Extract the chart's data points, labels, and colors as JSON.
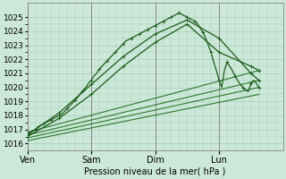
{
  "xlabel": "Pression niveau de la mer( hPa )",
  "ylim": [
    1015.5,
    1026.0
  ],
  "xlim": [
    0,
    96
  ],
  "yticks": [
    1016,
    1017,
    1018,
    1019,
    1020,
    1021,
    1022,
    1023,
    1024,
    1025
  ],
  "xtick_labels": [
    "Ven",
    "Sam",
    "Dim",
    "Lun"
  ],
  "xtick_positions": [
    0,
    24,
    48,
    72
  ],
  "vline_positions": [
    0,
    24,
    48,
    72
  ],
  "bg_color": "#cce8d8",
  "grid_color": "#aaccbb",
  "line_color_main": "#1a5c1a",
  "line_color_ensemble": "#2a7a2a",
  "main_series": [
    {
      "x": [
        0,
        1,
        2,
        3,
        4,
        5,
        6,
        7,
        8,
        9,
        10,
        11,
        12,
        13,
        14,
        15,
        16,
        17,
        18,
        19,
        20,
        21,
        22,
        23,
        24,
        25,
        26,
        27,
        28,
        29,
        30,
        31,
        32,
        33,
        34,
        35,
        36,
        37,
        38,
        39,
        40,
        41,
        42,
        43,
        44,
        45,
        46,
        47,
        48,
        49,
        50,
        51,
        52,
        53,
        54,
        55,
        56,
        57,
        58,
        59,
        60,
        61,
        62,
        63,
        64,
        65,
        66,
        67,
        68,
        69,
        70,
        71,
        72,
        73,
        74,
        75,
        76,
        77,
        78,
        79,
        80,
        81,
        82,
        83,
        84,
        85,
        86,
        87
      ],
      "y": [
        1016.7,
        1016.8,
        1016.9,
        1017.0,
        1017.2,
        1017.3,
        1017.4,
        1017.5,
        1017.6,
        1017.7,
        1017.8,
        1017.9,
        1018.0,
        1018.1,
        1018.3,
        1018.5,
        1018.7,
        1018.9,
        1019.1,
        1019.3,
        1019.6,
        1019.8,
        1020.0,
        1020.3,
        1020.5,
        1020.8,
        1021.0,
        1021.3,
        1021.5,
        1021.7,
        1021.9,
        1022.1,
        1022.3,
        1022.5,
        1022.7,
        1022.9,
        1023.1,
        1023.3,
        1023.4,
        1023.5,
        1023.6,
        1023.7,
        1023.8,
        1023.9,
        1024.0,
        1024.1,
        1024.2,
        1024.3,
        1024.4,
        1024.5,
        1024.6,
        1024.7,
        1024.8,
        1024.9,
        1025.0,
        1025.1,
        1025.2,
        1025.3,
        1025.2,
        1025.1,
        1025.0,
        1024.9,
        1024.8,
        1024.7,
        1024.5,
        1024.2,
        1023.9,
        1023.5,
        1023.0,
        1022.5,
        1021.8,
        1021.2,
        1020.5,
        1020.0,
        1021.2,
        1021.8,
        1021.5,
        1021.2,
        1020.8,
        1020.5,
        1020.2,
        1020.0,
        1019.8,
        1019.7,
        1020.3,
        1020.5,
        1020.3,
        1020.0
      ],
      "style": "marked"
    },
    {
      "x": [
        0,
        12,
        24,
        36,
        48,
        60,
        72,
        84,
        87
      ],
      "y": [
        1016.6,
        1018.2,
        1020.2,
        1022.2,
        1023.8,
        1024.8,
        1023.5,
        1021.0,
        1020.5
      ],
      "style": "marked2"
    },
    {
      "x": [
        0,
        12,
        24,
        36,
        48,
        60,
        72,
        84,
        87
      ],
      "y": [
        1016.5,
        1017.8,
        1019.5,
        1021.5,
        1023.2,
        1024.5,
        1022.5,
        1021.5,
        1021.2
      ],
      "style": "marked3"
    }
  ],
  "ensemble_lines": [
    {
      "x": [
        0,
        87
      ],
      "y": [
        1016.8,
        1021.2
      ]
    },
    {
      "x": [
        0,
        87
      ],
      "y": [
        1016.6,
        1020.5
      ]
    },
    {
      "x": [
        0,
        87
      ],
      "y": [
        1016.4,
        1020.0
      ]
    },
    {
      "x": [
        0,
        87
      ],
      "y": [
        1016.2,
        1019.5
      ]
    }
  ],
  "minor_yticks": [
    1016.5,
    1017.5,
    1018.5,
    1019.5,
    1020.5,
    1021.5,
    1022.5,
    1023.5,
    1024.5
  ],
  "grid_minor_x_step": 3
}
